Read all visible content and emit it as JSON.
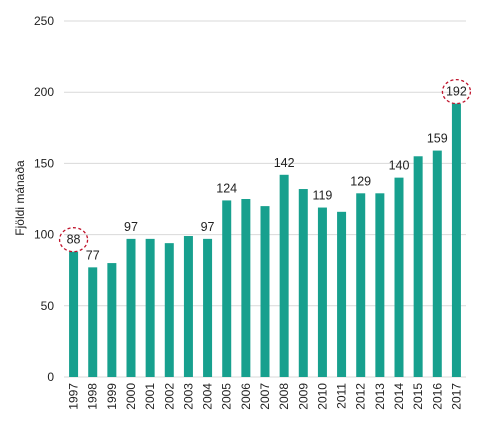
{
  "chart_data": {
    "type": "bar",
    "ylabel": "Fjöldi mánaða",
    "ylim": [
      0,
      250
    ],
    "yticks": [
      0,
      50,
      100,
      150,
      200,
      250
    ],
    "grid": true,
    "categories": [
      "1997",
      "1998",
      "1999",
      "2000",
      "2001",
      "2002",
      "2003",
      "2004",
      "2005",
      "2006",
      "2007",
      "2008",
      "2009",
      "2010",
      "2011",
      "2012",
      "2013",
      "2014",
      "2015",
      "2016",
      "2017"
    ],
    "series": [
      {
        "values": [
          88,
          77,
          80,
          97,
          97,
          94,
          99,
          97,
          124,
          125,
          120,
          142,
          132,
          119,
          116,
          129,
          129,
          140,
          155,
          159,
          192
        ]
      }
    ],
    "data_labels": [
      {
        "index": 0,
        "text": "88",
        "highlighted": true
      },
      {
        "index": 1,
        "text": "77"
      },
      {
        "index": 3,
        "text": "97"
      },
      {
        "index": 7,
        "text": "97"
      },
      {
        "index": 8,
        "text": "124"
      },
      {
        "index": 11,
        "text": "142"
      },
      {
        "index": 13,
        "text": "119"
      },
      {
        "index": 15,
        "text": "129"
      },
      {
        "index": 17,
        "text": "140"
      },
      {
        "index": 19,
        "text": "159"
      },
      {
        "index": 20,
        "text": "192",
        "highlighted": true
      }
    ],
    "colors": {
      "bar": "#17A08E",
      "grid": "#d9d9d9",
      "highlight": "#c0142c"
    }
  }
}
